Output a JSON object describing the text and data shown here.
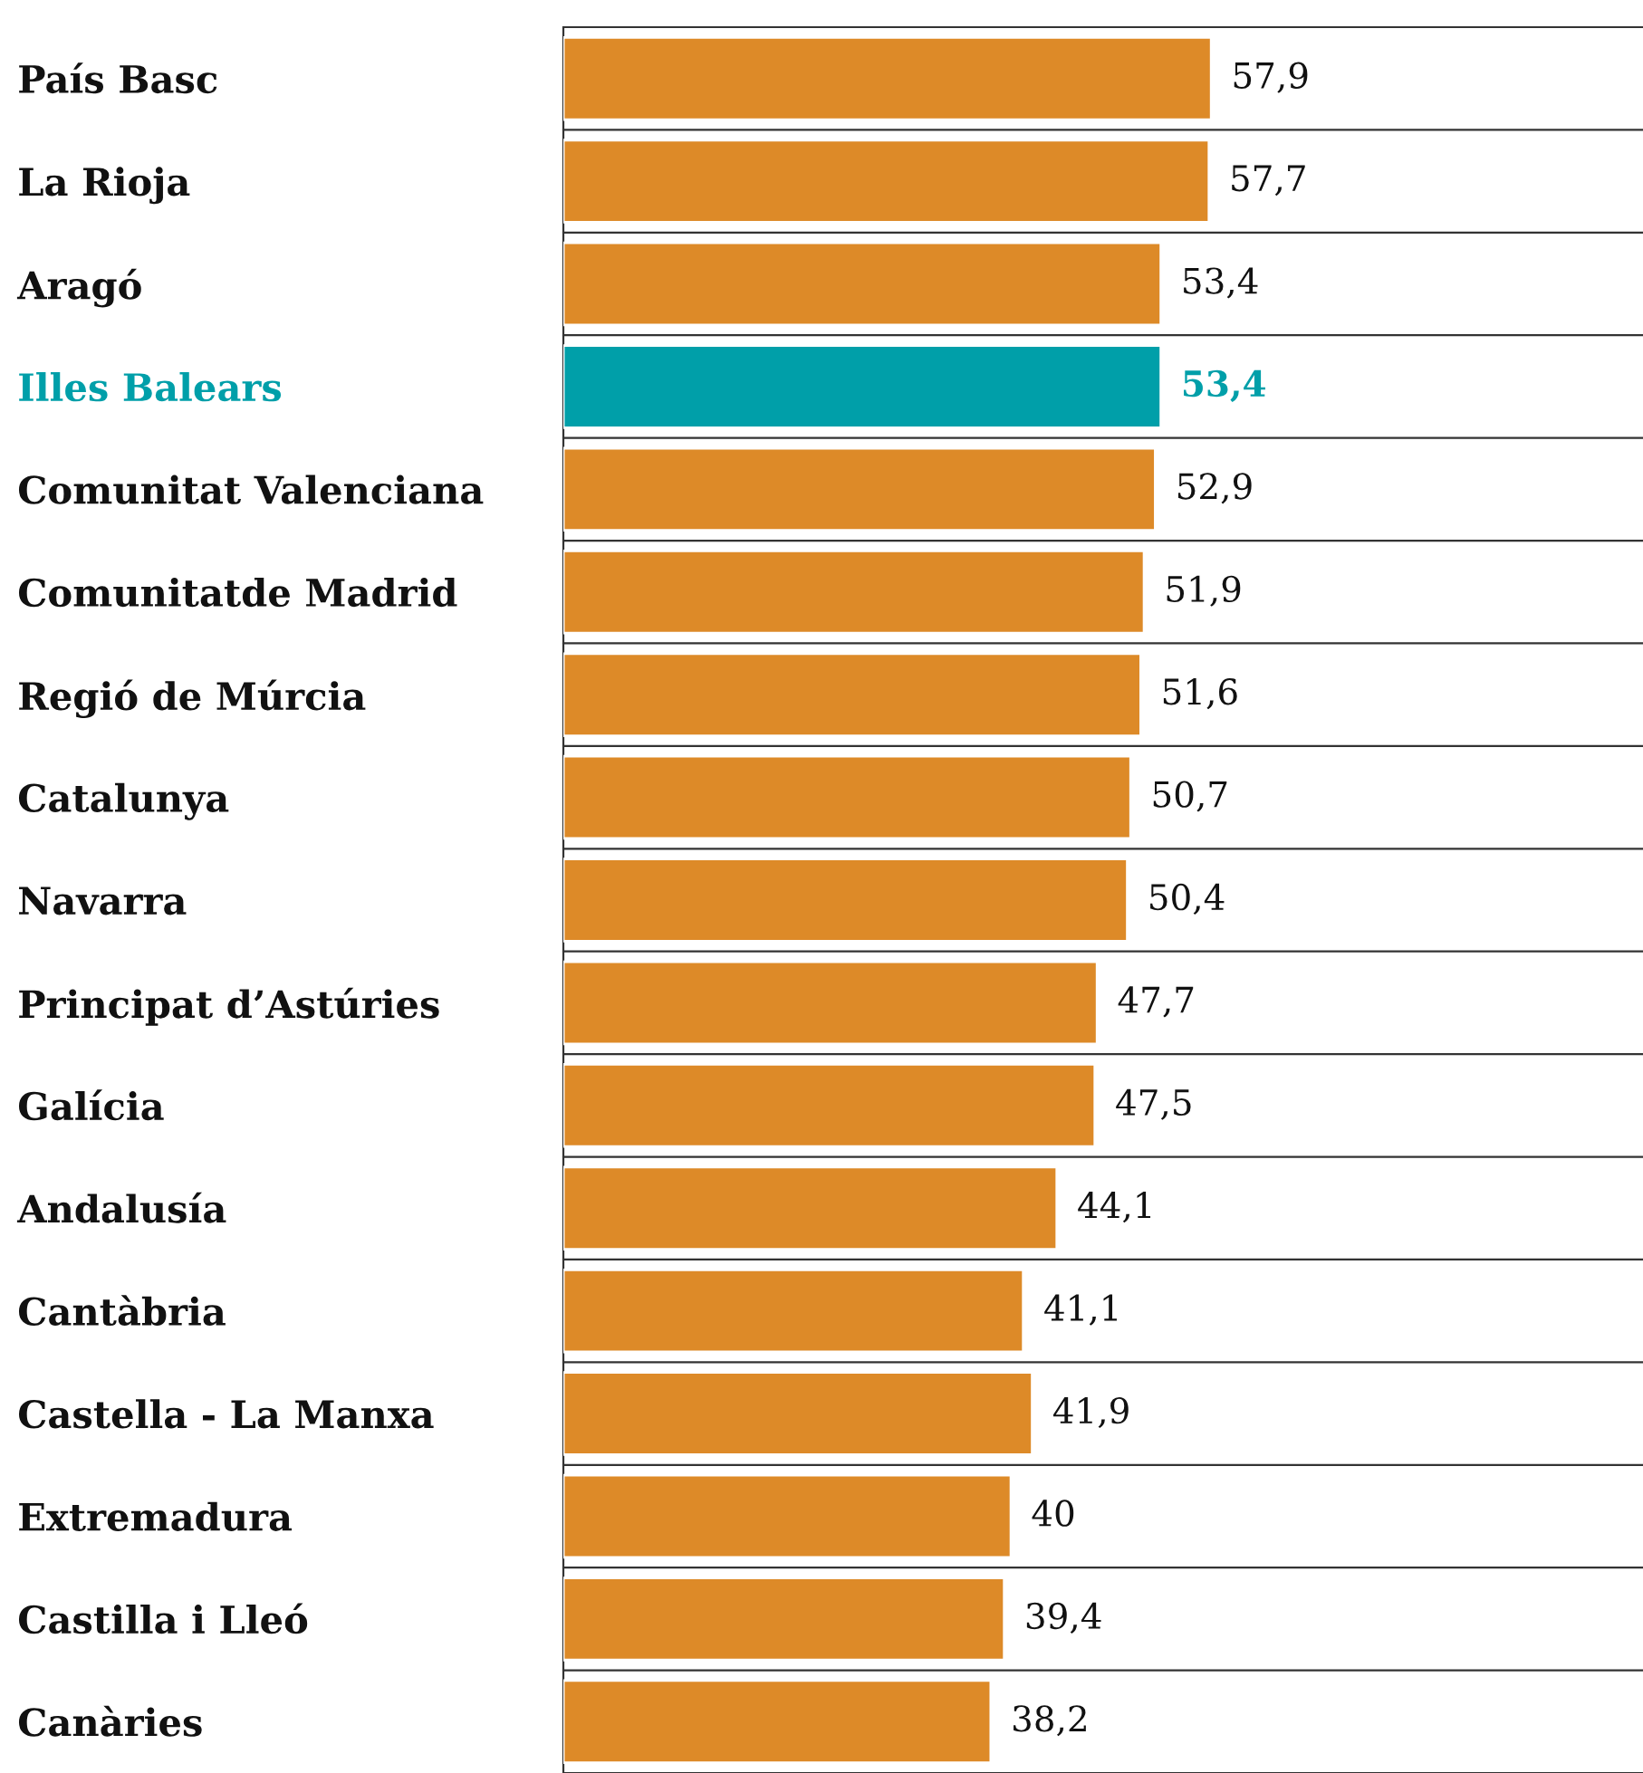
{
  "chart_data": {
    "type": "bar",
    "orientation": "horizontal",
    "categories": [
      "País Basc",
      "La Rioja",
      "Aragó",
      "Illes Balears",
      "Comunitat Valenciana",
      "Comunitatde Madrid",
      "Regió de Múrcia",
      "Catalunya",
      "Navarra",
      "Principat d’Astúries",
      "Galícia",
      "Andalusía",
      "Cantàbria",
      "Castella - La Manxa",
      "Extremadura",
      "Castilla i Lleó",
      "Canàries"
    ],
    "values": [
      57.9,
      57.7,
      53.4,
      53.4,
      52.9,
      51.9,
      51.6,
      50.7,
      50.4,
      47.7,
      47.5,
      44.1,
      41.1,
      41.9,
      40,
      39.4,
      38.2
    ],
    "value_labels": [
      "57,9",
      "57,7",
      "53,4",
      "53,4",
      "52,9",
      "51,9",
      "51,6",
      "50,7",
      "50,4",
      "47,7",
      "47,5",
      "44,1",
      "41,1",
      "41,9",
      "40",
      "39,4",
      "38,2"
    ],
    "colors": [
      "#dd8a28",
      "#dd8a28",
      "#dd8a28",
      "#009fa9",
      "#dd8a28",
      "#dd8a28",
      "#dd8a28",
      "#dd8a28",
      "#dd8a28",
      "#dd8a28",
      "#dd8a28",
      "#dd8a28",
      "#dd8a28",
      "#dd8a28",
      "#dd8a28",
      "#dd8a28",
      "#dd8a28"
    ],
    "tick_labels": "y",
    "grid": "y"
  }
}
